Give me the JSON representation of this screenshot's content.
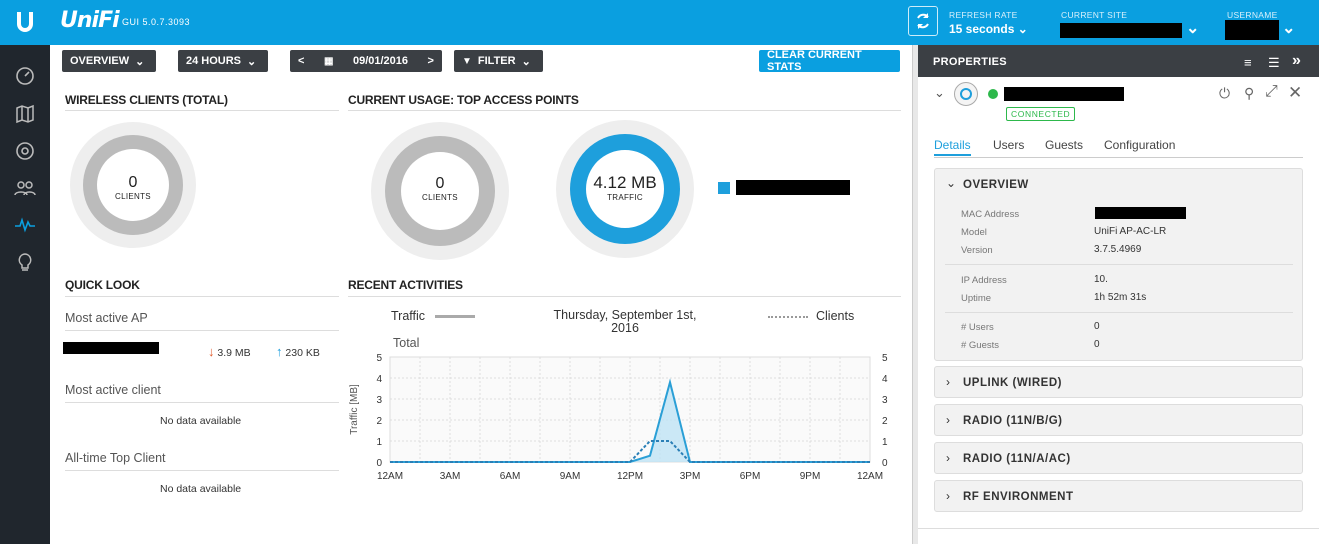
{
  "header": {
    "logo_text": "UniFi",
    "gui_version": "GUI 5.0.7.3093",
    "refresh_label": "REFRESH RATE",
    "refresh_value": "15 seconds",
    "site_label": "CURRENT SITE",
    "user_label": "USERNAME"
  },
  "toolbar": {
    "overview": "OVERVIEW",
    "hours": "24 HOURS",
    "date": "09/01/2016",
    "filter": "FILTER",
    "clear": "CLEAR CURRENT STATS"
  },
  "wireless": {
    "title": "WIRELESS CLIENTS (TOTAL)",
    "value": "0",
    "caption": "CLIENTS"
  },
  "usage": {
    "title": "CURRENT USAGE: TOP ACCESS POINTS",
    "clients_value": "0",
    "clients_caption": "CLIENTS",
    "traffic_value": "4.12 MB",
    "traffic_caption": "TRAFFIC"
  },
  "quicklook": {
    "title": "QUICK LOOK",
    "most_active_ap": "Most active AP",
    "down": "3.9 MB",
    "up": "230 KB",
    "most_active_client": "Most active client",
    "no_data_1": "No data available",
    "all_time": "All-time Top Client",
    "no_data_2": "No data available"
  },
  "recent": {
    "title": "RECENT ACTIVITIES",
    "legend_traffic": "Traffic",
    "legend_clients": "Clients",
    "date_line1": "Thursday, September 1st,",
    "date_line2": "2016",
    "total": "Total"
  },
  "chart_data": {
    "type": "line",
    "x": [
      "12AM",
      "3AM",
      "6AM",
      "9AM",
      "12PM",
      "3PM",
      "6PM",
      "9PM",
      "12AM"
    ],
    "ylabel": "Traffic [MB]",
    "ylim": [
      0,
      5
    ],
    "y_ticks": [
      "0",
      "1",
      "2",
      "3",
      "4",
      "5"
    ],
    "y_ticks_right": [
      "0",
      "1",
      "2",
      "3",
      "4",
      "5"
    ],
    "grid": true,
    "series": [
      {
        "name": "Traffic",
        "style": "solid",
        "color": "#2a9fd6",
        "points": [
          [
            0,
            0
          ],
          [
            12,
            0
          ],
          [
            13,
            0.3
          ],
          [
            14,
            3.8
          ],
          [
            15,
            0
          ],
          [
            24,
            0
          ]
        ]
      },
      {
        "name": "Clients",
        "style": "dotted",
        "color": "#2a7fb6",
        "points": [
          [
            0,
            0
          ],
          [
            12,
            0
          ],
          [
            13,
            1
          ],
          [
            14,
            1
          ],
          [
            15,
            0
          ],
          [
            24,
            0
          ]
        ]
      }
    ]
  },
  "properties": {
    "title": "PROPERTIES",
    "status": "CONNECTED",
    "tabs": [
      "Details",
      "Users",
      "Guests",
      "Configuration"
    ],
    "overview_title": "OVERVIEW",
    "mac_label": "MAC Address",
    "model_label": "Model",
    "model_value": "UniFi AP-AC-LR",
    "version_label": "Version",
    "version_value": "3.7.5.4969",
    "ip_label": "IP Address",
    "ip_value": "10.",
    "uptime_label": "Uptime",
    "uptime_value": "1h 52m 31s",
    "users_label": "# Users",
    "users_value": "0",
    "guests_label": "# Guests",
    "guests_value": "0",
    "sections": [
      "UPLINK (WIRED)",
      "RADIO (11N/B/G)",
      "RADIO (11N/A/AC)",
      "RF ENVIRONMENT"
    ]
  }
}
